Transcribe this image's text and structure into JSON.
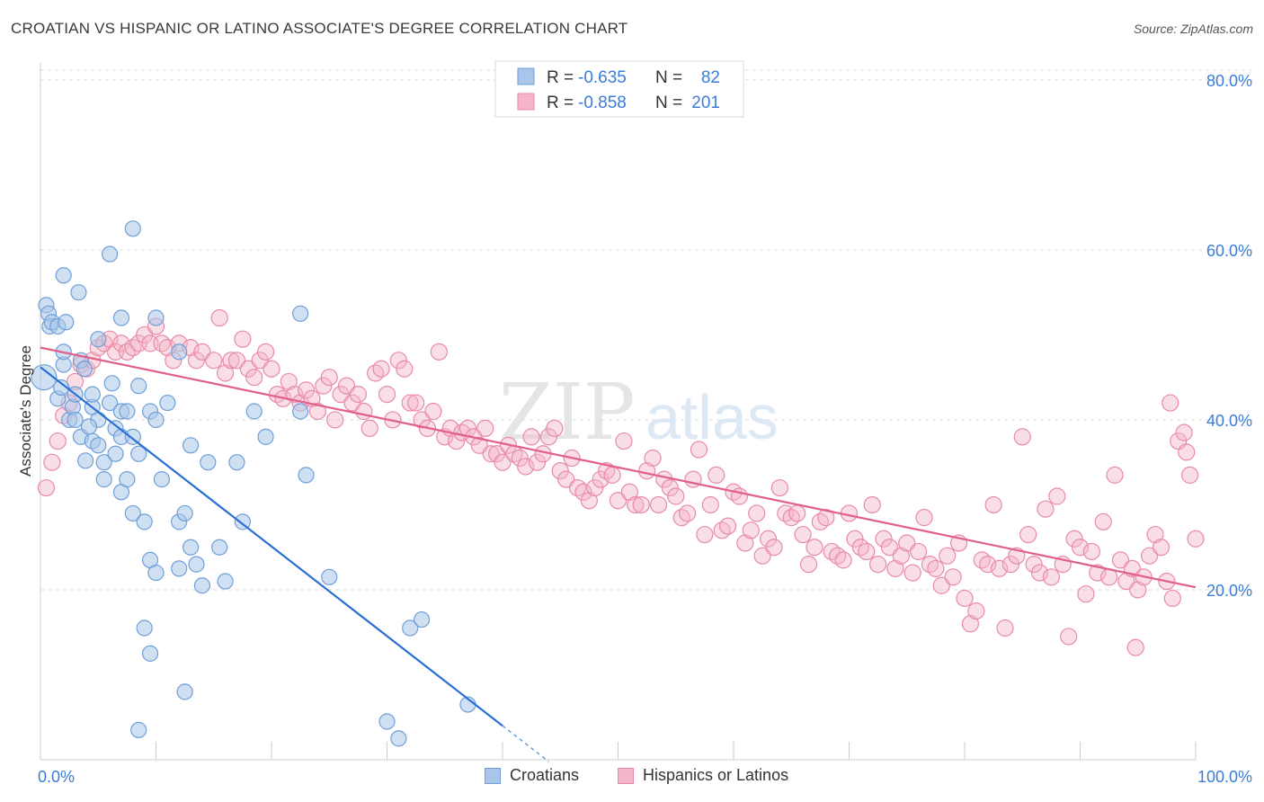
{
  "header": {
    "title": "CROATIAN VS HISPANIC OR LATINO ASSOCIATE'S DEGREE CORRELATION CHART",
    "source": "Source: ZipAtlas.com"
  },
  "watermark": {
    "part1": "ZIP",
    "part2": "atlas"
  },
  "colors": {
    "blue_fill": "#a9c6ea",
    "blue_stroke": "#6f9fd8",
    "blue_line": "#2a6fd6",
    "pink_fill": "#f4b6c8",
    "pink_stroke": "#e88aa8",
    "pink_line": "#e0608a",
    "tick_text": "#3b7dd8",
    "grid": "#dcdcdc"
  },
  "legend": {
    "rows": [
      {
        "r_label": "R =",
        "r_value": "-0.635",
        "n_label": "N =",
        "n_value": "82"
      },
      {
        "r_label": "R =",
        "r_value": "-0.858",
        "n_label": "N =",
        "n_value": "201"
      }
    ]
  },
  "bottom_legend": {
    "items": [
      "Croatians",
      "Hispanics or Latinos"
    ]
  },
  "chart_data": {
    "type": "scatter",
    "title": "CROATIAN VS HISPANIC OR LATINO ASSOCIATE'S DEGREE CORRELATION CHART",
    "xlabel": "",
    "ylabel": "Associate's Degree",
    "xlim": [
      0,
      100
    ],
    "ylim": [
      0,
      82
    ],
    "x_tick_labels": [
      "0.0%",
      "100.0%"
    ],
    "y_ticks": [
      20,
      40,
      60,
      80
    ],
    "y_tick_labels": [
      "20.0%",
      "40.0%",
      "60.0%",
      "80.0%"
    ],
    "grid": true,
    "legend_position": "top-center",
    "series": [
      {
        "name": "Croatians",
        "r": -0.635,
        "n": 82,
        "trend": {
          "x0": 0,
          "y0": 46.2,
          "x1": 40,
          "y1": 4.0,
          "dash_to_x": 44
        },
        "points": [
          [
            0.3,
            45
          ],
          [
            0.5,
            53.5
          ],
          [
            0.7,
            52.5
          ],
          [
            0.8,
            51
          ],
          [
            1,
            51.5
          ],
          [
            1.5,
            51
          ],
          [
            2,
            57
          ],
          [
            2.2,
            51.5
          ],
          [
            3.3,
            55
          ],
          [
            3.5,
            47
          ],
          [
            2,
            46.5
          ],
          [
            3.8,
            46
          ],
          [
            1.5,
            42.5
          ],
          [
            2.5,
            40
          ],
          [
            2.8,
            41.5
          ],
          [
            3,
            40
          ],
          [
            3.5,
            38
          ],
          [
            4.5,
            41.5
          ],
          [
            5,
            40
          ],
          [
            6,
            42
          ],
          [
            7,
            41
          ],
          [
            4.5,
            43
          ],
          [
            6.5,
            39
          ],
          [
            7.5,
            41
          ],
          [
            4.5,
            37.5
          ],
          [
            5,
            37
          ],
          [
            7,
            38
          ],
          [
            8,
            38
          ],
          [
            9.5,
            41
          ],
          [
            10,
            40
          ],
          [
            11,
            42
          ],
          [
            12,
            48
          ],
          [
            5.5,
            35
          ],
          [
            6.5,
            36
          ],
          [
            8.5,
            36
          ],
          [
            13,
            37
          ],
          [
            14.5,
            35
          ],
          [
            5.5,
            33
          ],
          [
            7,
            31.5
          ],
          [
            7.5,
            33
          ],
          [
            8,
            29
          ],
          [
            9,
            28
          ],
          [
            10.5,
            33
          ],
          [
            12,
            28
          ],
          [
            12.5,
            29
          ],
          [
            13,
            25
          ],
          [
            12,
            22.5
          ],
          [
            13.5,
            23
          ],
          [
            15.5,
            25
          ],
          [
            16,
            21
          ],
          [
            17,
            35
          ],
          [
            17.5,
            28
          ],
          [
            18.5,
            41
          ],
          [
            19.5,
            38
          ],
          [
            23,
            33.5
          ],
          [
            22.5,
            41
          ],
          [
            25,
            21.5
          ],
          [
            8,
            62.5
          ],
          [
            6,
            59.5
          ],
          [
            10,
            52
          ],
          [
            22.5,
            52.5
          ],
          [
            7,
            52
          ],
          [
            5,
            49.5
          ],
          [
            8.5,
            44
          ],
          [
            9,
            15.5
          ],
          [
            9.5,
            12.5
          ],
          [
            12.5,
            8
          ],
          [
            8.5,
            3.5
          ],
          [
            30,
            4.5
          ],
          [
            31,
            2.5
          ],
          [
            32,
            15.5
          ],
          [
            33,
            16.5
          ],
          [
            37,
            6.5
          ],
          [
            9.5,
            23.5
          ],
          [
            10,
            22
          ],
          [
            14,
            20.5
          ],
          [
            2,
            48
          ],
          [
            3,
            43
          ],
          [
            1.8,
            43.8
          ],
          [
            4.2,
            39.2
          ],
          [
            6.2,
            44.3
          ],
          [
            3.9,
            35.2
          ]
        ]
      },
      {
        "name": "Hispanics or Latinos",
        "r": -0.858,
        "n": 201,
        "trend": {
          "x0": 0,
          "y0": 48.5,
          "x1": 100,
          "y1": 20.3
        },
        "points": [
          [
            0.5,
            32
          ],
          [
            1,
            35
          ],
          [
            1.5,
            37.5
          ],
          [
            2,
            40.5
          ],
          [
            2.5,
            42
          ],
          [
            3,
            44.5
          ],
          [
            3.5,
            46.5
          ],
          [
            4,
            46
          ],
          [
            4.5,
            47
          ],
          [
            5,
            48.5
          ],
          [
            5.5,
            49
          ],
          [
            6,
            49.5
          ],
          [
            6.5,
            48
          ],
          [
            7,
            49
          ],
          [
            7.5,
            48
          ],
          [
            8,
            48.5
          ],
          [
            8.5,
            49
          ],
          [
            9,
            50
          ],
          [
            9.5,
            49
          ],
          [
            10,
            51
          ],
          [
            10.5,
            49
          ],
          [
            11,
            48.5
          ],
          [
            11.5,
            47
          ],
          [
            12,
            49
          ],
          [
            13,
            48.5
          ],
          [
            13.5,
            47
          ],
          [
            14,
            48
          ],
          [
            15,
            47
          ],
          [
            15.5,
            52
          ],
          [
            16,
            45.5
          ],
          [
            16.5,
            47
          ],
          [
            17,
            47
          ],
          [
            17.5,
            49.5
          ],
          [
            18,
            46
          ],
          [
            18.5,
            45
          ],
          [
            19,
            47
          ],
          [
            19.5,
            48
          ],
          [
            20,
            46
          ],
          [
            20.5,
            43
          ],
          [
            21,
            42.5
          ],
          [
            21.5,
            44.5
          ],
          [
            22,
            43
          ],
          [
            22.5,
            42
          ],
          [
            23,
            43.5
          ],
          [
            23.5,
            42.5
          ],
          [
            24,
            41
          ],
          [
            24.5,
            44
          ],
          [
            25,
            45
          ],
          [
            25.5,
            40
          ],
          [
            26,
            43
          ],
          [
            26.5,
            44
          ],
          [
            27,
            42
          ],
          [
            27.5,
            43
          ],
          [
            28,
            41
          ],
          [
            28.5,
            39
          ],
          [
            29,
            45.5
          ],
          [
            29.5,
            46
          ],
          [
            30,
            43
          ],
          [
            30.5,
            40
          ],
          [
            31,
            47
          ],
          [
            31.5,
            46
          ],
          [
            32,
            42
          ],
          [
            32.5,
            42
          ],
          [
            33,
            40
          ],
          [
            33.5,
            39
          ],
          [
            34,
            41
          ],
          [
            34.5,
            48
          ],
          [
            35,
            38
          ],
          [
            35.5,
            39
          ],
          [
            36,
            37.5
          ],
          [
            36.5,
            38.5
          ],
          [
            37,
            39
          ],
          [
            37.5,
            38
          ],
          [
            38,
            37
          ],
          [
            38.5,
            39
          ],
          [
            39,
            36
          ],
          [
            39.5,
            36
          ],
          [
            40,
            35
          ],
          [
            40.5,
            37
          ],
          [
            41,
            36
          ],
          [
            41.5,
            35.5
          ],
          [
            42,
            34.5
          ],
          [
            42.5,
            38
          ],
          [
            43,
            35
          ],
          [
            43.5,
            36
          ],
          [
            44,
            38
          ],
          [
            44.5,
            39
          ],
          [
            45,
            34
          ],
          [
            45.5,
            33
          ],
          [
            46,
            35.5
          ],
          [
            46.5,
            32
          ],
          [
            47,
            31.5
          ],
          [
            47.5,
            30.5
          ],
          [
            48,
            32
          ],
          [
            48.5,
            33
          ],
          [
            49,
            34
          ],
          [
            49.5,
            33.5
          ],
          [
            50,
            30.5
          ],
          [
            50.5,
            37.5
          ],
          [
            51,
            31.5
          ],
          [
            51.5,
            30
          ],
          [
            52,
            30
          ],
          [
            52.5,
            34
          ],
          [
            53,
            35.5
          ],
          [
            53.5,
            30
          ],
          [
            54,
            33
          ],
          [
            54.5,
            32
          ],
          [
            55,
            31
          ],
          [
            55.5,
            28.5
          ],
          [
            56,
            29
          ],
          [
            56.5,
            33
          ],
          [
            57,
            36.5
          ],
          [
            57.5,
            26.5
          ],
          [
            58,
            30
          ],
          [
            58.5,
            33.5
          ],
          [
            59,
            27
          ],
          [
            59.5,
            27.5
          ],
          [
            60,
            31.5
          ],
          [
            60.5,
            31
          ],
          [
            61,
            25.5
          ],
          [
            61.5,
            27
          ],
          [
            62,
            29
          ],
          [
            62.5,
            24
          ],
          [
            63,
            26
          ],
          [
            63.5,
            25
          ],
          [
            64,
            32
          ],
          [
            64.5,
            29
          ],
          [
            65,
            28.5
          ],
          [
            65.5,
            29
          ],
          [
            66,
            26.5
          ],
          [
            66.5,
            23
          ],
          [
            67,
            25
          ],
          [
            67.5,
            28
          ],
          [
            68,
            28.5
          ],
          [
            68.5,
            24.5
          ],
          [
            69,
            24
          ],
          [
            69.5,
            23.5
          ],
          [
            70,
            29
          ],
          [
            70.5,
            26
          ],
          [
            71,
            25
          ],
          [
            71.5,
            24.5
          ],
          [
            72,
            30
          ],
          [
            72.5,
            23
          ],
          [
            73,
            26
          ],
          [
            73.5,
            25
          ],
          [
            74,
            22.5
          ],
          [
            74.5,
            24
          ],
          [
            75,
            25.5
          ],
          [
            75.5,
            22
          ],
          [
            76,
            24.5
          ],
          [
            76.5,
            28.5
          ],
          [
            77,
            23
          ],
          [
            77.5,
            22.5
          ],
          [
            78,
            20.5
          ],
          [
            78.5,
            24
          ],
          [
            79,
            21.5
          ],
          [
            79.5,
            25.5
          ],
          [
            80,
            19
          ],
          [
            80.5,
            16
          ],
          [
            81,
            17.5
          ],
          [
            81.5,
            23.5
          ],
          [
            82,
            23
          ],
          [
            82.5,
            30
          ],
          [
            83,
            22.5
          ],
          [
            83.5,
            15.5
          ],
          [
            84,
            23
          ],
          [
            84.5,
            24
          ],
          [
            85,
            38
          ],
          [
            85.5,
            26.5
          ],
          [
            86,
            23
          ],
          [
            86.5,
            22
          ],
          [
            87,
            29.5
          ],
          [
            87.5,
            21.5
          ],
          [
            88,
            31
          ],
          [
            88.5,
            23
          ],
          [
            89,
            14.5
          ],
          [
            89.5,
            26
          ],
          [
            90,
            25
          ],
          [
            90.5,
            19.5
          ],
          [
            91,
            24.5
          ],
          [
            91.5,
            22
          ],
          [
            92,
            28
          ],
          [
            92.5,
            21.5
          ],
          [
            93,
            33.5
          ],
          [
            93.5,
            23.5
          ],
          [
            94,
            21
          ],
          [
            94.5,
            22.5
          ],
          [
            95,
            20
          ],
          [
            95.5,
            21.5
          ],
          [
            96,
            24
          ],
          [
            96.5,
            26.5
          ],
          [
            97,
            25
          ],
          [
            97.5,
            21
          ],
          [
            98,
            19
          ],
          [
            98.5,
            37.5
          ],
          [
            99,
            38.5
          ],
          [
            99.5,
            33.5
          ],
          [
            100,
            26
          ],
          [
            97.8,
            42
          ],
          [
            99.2,
            36.2
          ],
          [
            94.8,
            13.2
          ]
        ]
      }
    ]
  }
}
